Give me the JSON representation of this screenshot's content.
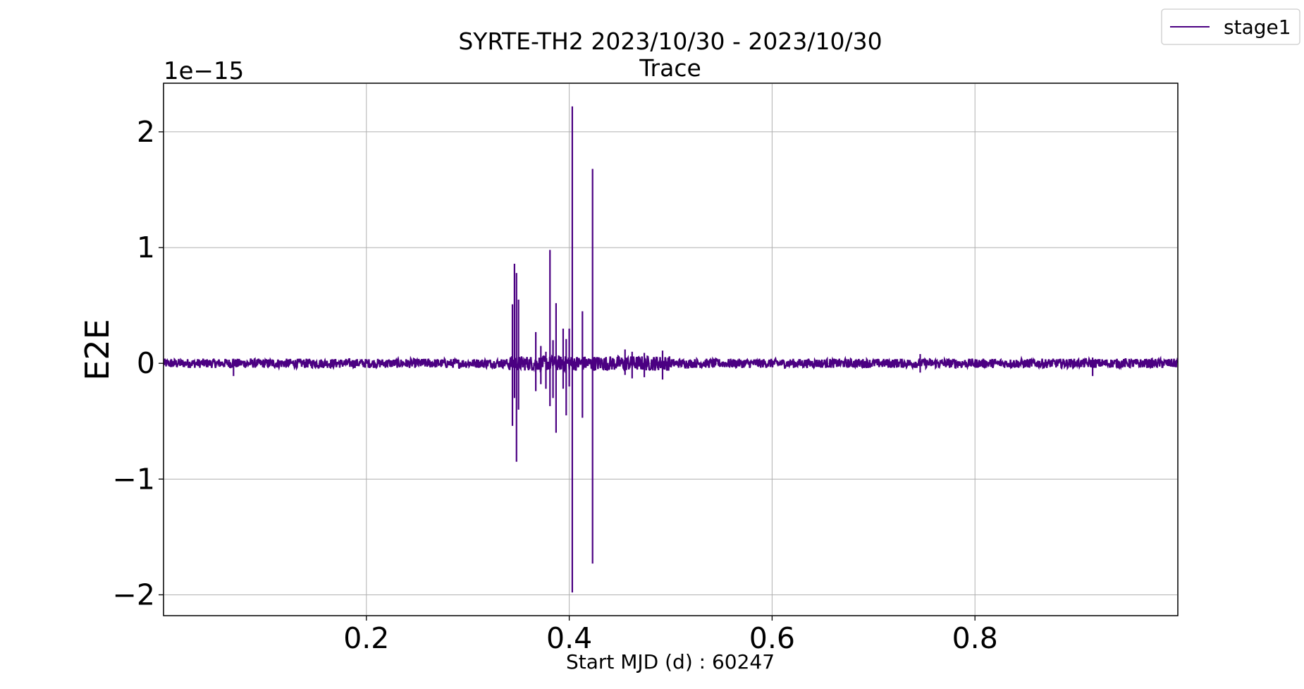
{
  "chart_data": {
    "type": "line",
    "title": "SYRTE-TH2 2023/10/30 - 2023/10/30",
    "subtitle": "Trace",
    "xlabel": "Start MJD (d) : 60247",
    "ylabel": "E2E",
    "y_offset_label": "1e−15",
    "y_scale": 1e-15,
    "xlim": [
      0.0,
      1.0
    ],
    "ylim": [
      -2.18,
      2.42
    ],
    "x_ticks": [
      0.2,
      0.4,
      0.6,
      0.8
    ],
    "x_tick_labels": [
      "0.2",
      "0.4",
      "0.6",
      "0.8"
    ],
    "y_ticks": [
      -2,
      -1,
      0,
      1,
      2
    ],
    "y_tick_labels": [
      "−2",
      "−1",
      "0",
      "1",
      "2"
    ],
    "grid": true,
    "legend_position": "top-right (outside plot)",
    "series": [
      {
        "name": "stage1",
        "color": "#4b0082",
        "baseline_noise_amplitude": 0.04,
        "spikes": [
          {
            "x": 0.069,
            "min": -0.11,
            "max": 0.04
          },
          {
            "x": 0.344,
            "min": -0.54,
            "max": 0.51
          },
          {
            "x": 0.346,
            "min": -0.3,
            "max": 0.86
          },
          {
            "x": 0.348,
            "min": -0.85,
            "max": 0.78
          },
          {
            "x": 0.35,
            "min": -0.4,
            "max": 0.55
          },
          {
            "x": 0.367,
            "min": -0.24,
            "max": 0.27
          },
          {
            "x": 0.372,
            "min": -0.18,
            "max": 0.15
          },
          {
            "x": 0.377,
            "min": -0.22,
            "max": 0.1
          },
          {
            "x": 0.381,
            "min": -0.37,
            "max": 0.98
          },
          {
            "x": 0.384,
            "min": -0.3,
            "max": 0.2
          },
          {
            "x": 0.387,
            "min": -0.6,
            "max": 0.52
          },
          {
            "x": 0.394,
            "min": -0.22,
            "max": 0.3
          },
          {
            "x": 0.397,
            "min": -0.45,
            "max": 0.21
          },
          {
            "x": 0.4,
            "min": -0.2,
            "max": 0.3
          },
          {
            "x": 0.403,
            "min": -1.98,
            "max": 2.22
          },
          {
            "x": 0.413,
            "min": -0.47,
            "max": 0.45
          },
          {
            "x": 0.423,
            "min": -1.73,
            "max": 1.68
          },
          {
            "x": 0.455,
            "min": -0.1,
            "max": 0.12
          },
          {
            "x": 0.462,
            "min": -0.13,
            "max": 0.1
          },
          {
            "x": 0.474,
            "min": -0.12,
            "max": 0.09
          },
          {
            "x": 0.492,
            "min": -0.14,
            "max": 0.11
          },
          {
            "x": 0.746,
            "min": -0.08,
            "max": 0.08
          },
          {
            "x": 0.916,
            "min": -0.11,
            "max": 0.05
          }
        ]
      }
    ]
  }
}
